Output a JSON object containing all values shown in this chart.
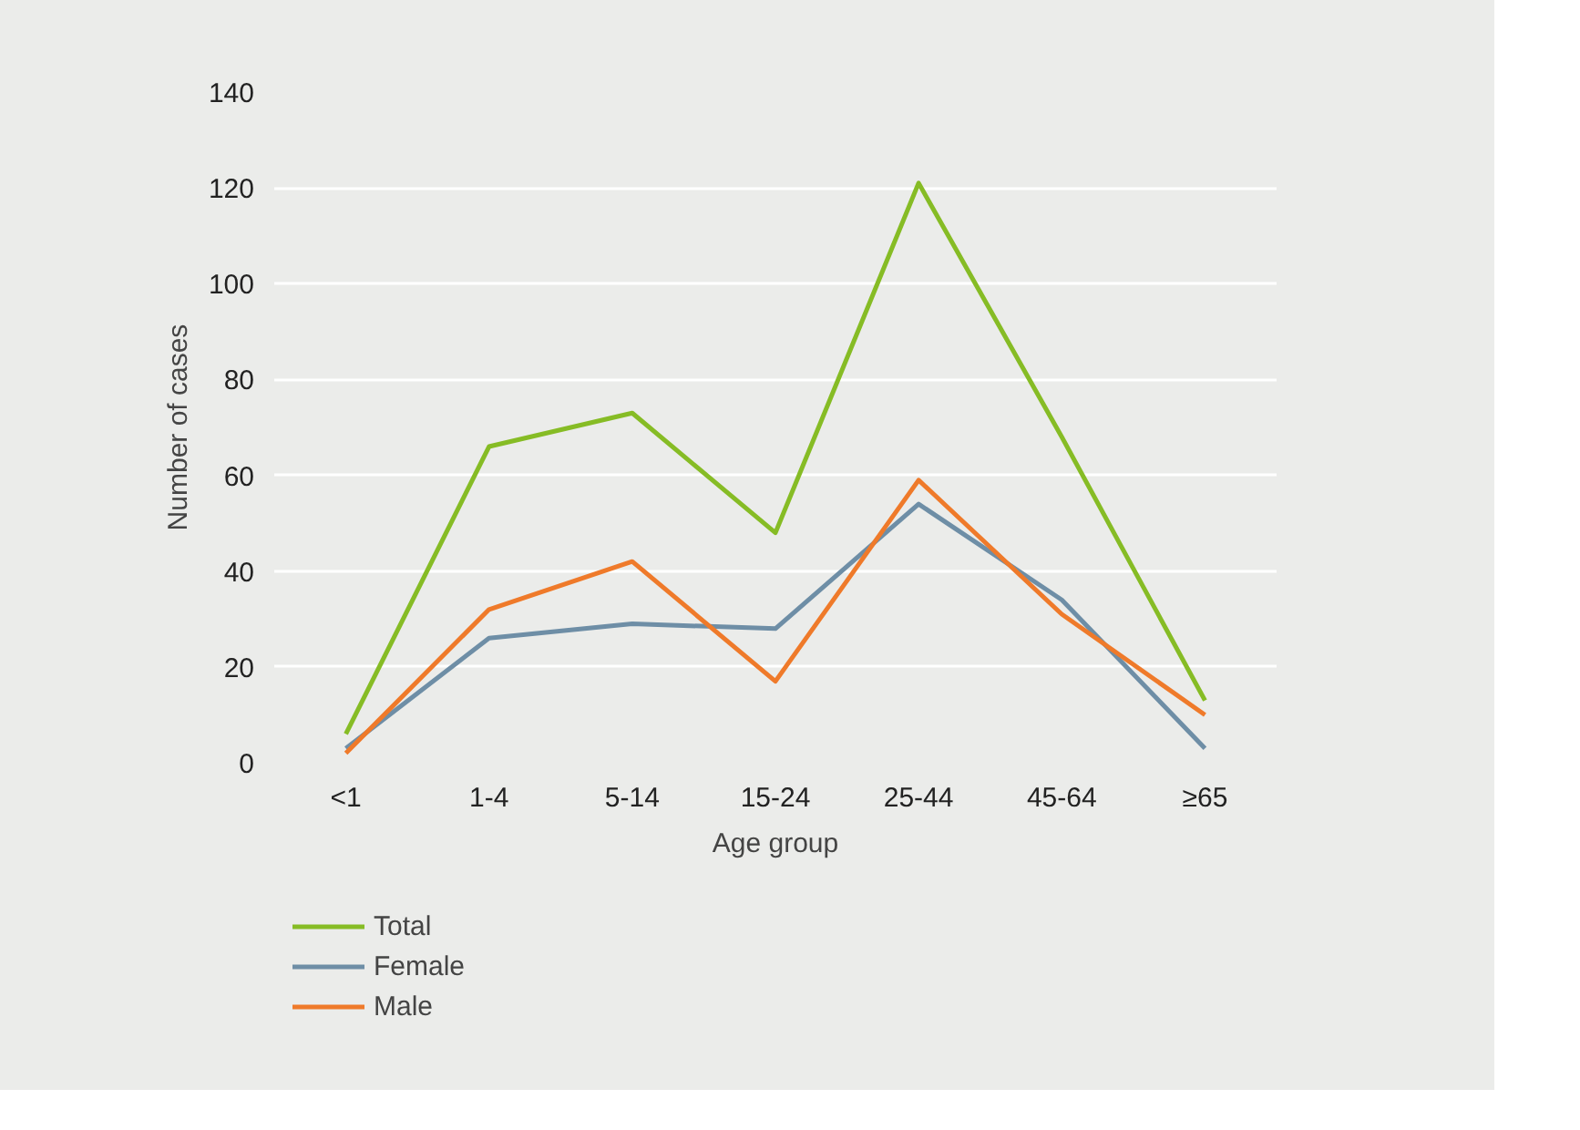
{
  "chart_data": {
    "type": "line",
    "xlabel": "Age group",
    "ylabel": "Number of cases",
    "categories": [
      "<1",
      "1-4",
      "5-14",
      "15-24",
      "25-44",
      "45-64",
      "≥65"
    ],
    "series": [
      {
        "name": "Total",
        "color": "#86bc25",
        "values": [
          6,
          66,
          73,
          48,
          121,
          68,
          13
        ]
      },
      {
        "name": "Female",
        "color": "#6e8ea6",
        "values": [
          3,
          26,
          29,
          28,
          54,
          34,
          3
        ]
      },
      {
        "name": "Male",
        "color": "#ef7a2a",
        "values": [
          2,
          32,
          42,
          17,
          59,
          31,
          10
        ]
      }
    ],
    "ylim": [
      0,
      140
    ],
    "yticks": [
      0,
      20,
      40,
      60,
      80,
      100,
      120,
      140
    ],
    "grid": "y",
    "legend": "bottom left",
    "marker": "none",
    "line_style": "solid"
  }
}
